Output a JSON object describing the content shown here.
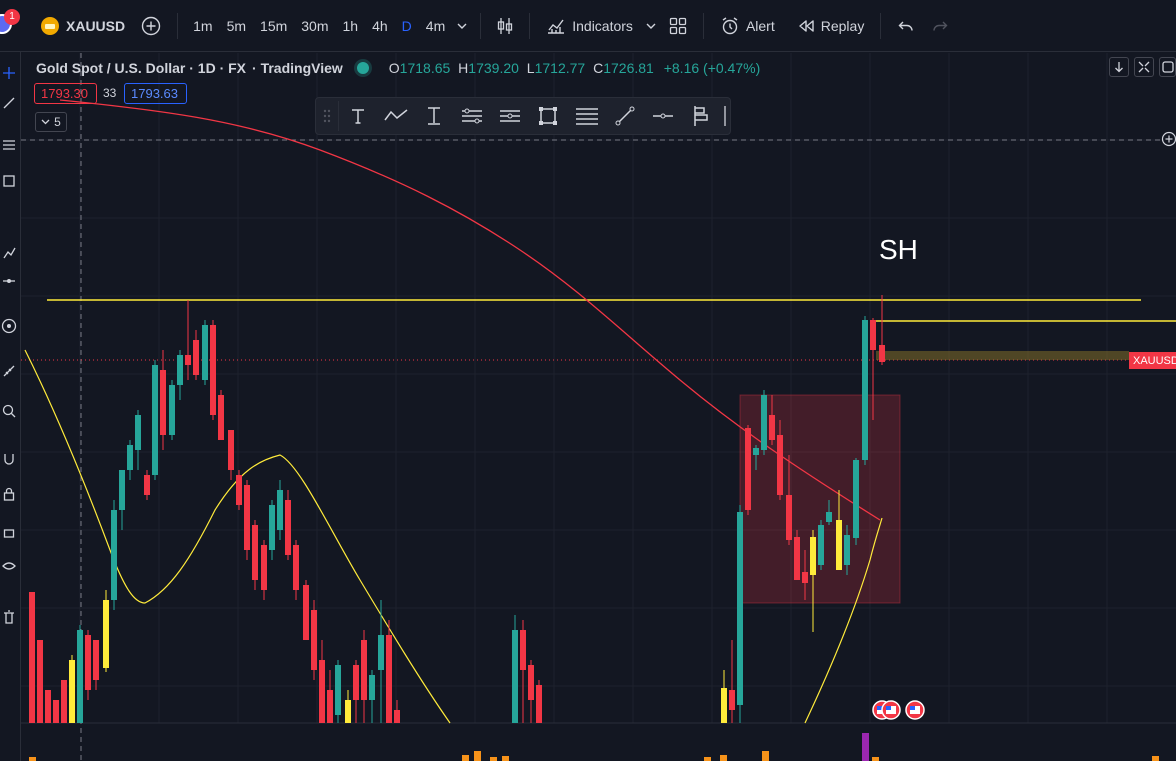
{
  "header": {
    "notification_count": "1",
    "symbol": "XAUUSD",
    "intervals": [
      "1m",
      "5m",
      "15m",
      "30m",
      "1h",
      "4h",
      "D",
      "4m"
    ],
    "active_interval": "D",
    "indicators_label": "Indicators",
    "alert_label": "Alert",
    "replay_label": "Replay"
  },
  "legend": {
    "title": "Gold Spot / U.S. Dollar · 1D · FX",
    "source": "· TradingView",
    "o_label": "O",
    "o_value": "1718.65",
    "h_label": "H",
    "h_value": "1739.20",
    "l_label": "L",
    "l_value": "1712.77",
    "c_label": "C",
    "c_value": "1726.81",
    "change": "+8.16 (+0.47%)"
  },
  "quote": {
    "bid": "1793.30",
    "spread": "33",
    "ask": "1793.63",
    "indicator_count": "5"
  },
  "annotations": {
    "swing_label": "SH",
    "price_tag": "XAUUSD"
  },
  "colors": {
    "background": "#131722",
    "up": "#26a69a",
    "down": "#f23645",
    "highlight": "#ffeb3b",
    "ma_line": "#f23645",
    "accent": "#2962ff"
  },
  "chart_data": {
    "type": "candlestick",
    "symbol": "XAUUSD",
    "timeframe": "1D",
    "last": {
      "open": 1718.65,
      "high": 1739.2,
      "low": 1712.77,
      "close": 1726.81,
      "change": 8.16,
      "change_pct": 0.47
    },
    "horizontal_lines": [
      "yellow",
      "yellow"
    ],
    "zone": "red rectangle",
    "moving_averages": [
      "red",
      "yellow"
    ]
  }
}
